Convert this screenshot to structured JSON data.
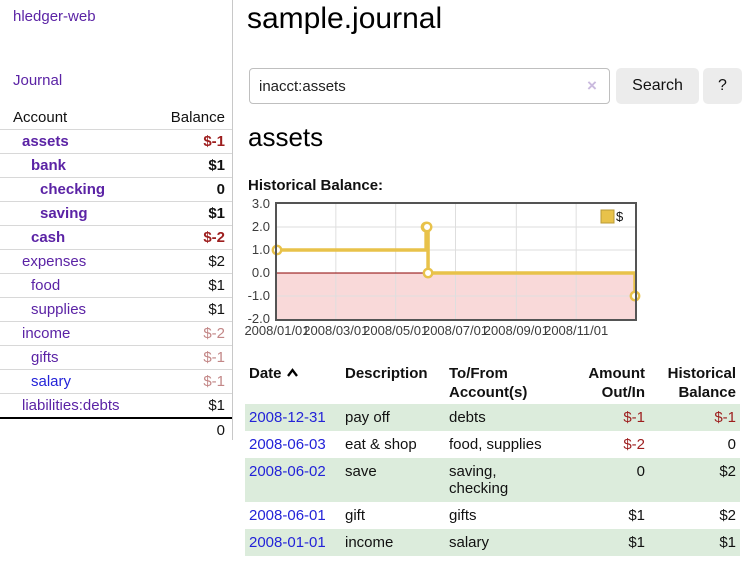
{
  "sidebar": {
    "app_title": "hledger-web",
    "nav_journal": "Journal",
    "accounts_table": {
      "header_account": "Account",
      "header_balance": "Balance",
      "rows": [
        {
          "account": "assets",
          "balance": "$-1",
          "level": 1,
          "bold": true,
          "balance_style": "neg"
        },
        {
          "account": "bank",
          "balance": "$1",
          "level": 2,
          "bold": true,
          "balance_style": ""
        },
        {
          "account": "checking",
          "balance": "0",
          "level": 3,
          "bold": true,
          "balance_style": ""
        },
        {
          "account": "saving",
          "balance": "$1",
          "level": 3,
          "bold": true,
          "balance_style": ""
        },
        {
          "account": "cash",
          "balance": "$-2",
          "level": 2,
          "bold": true,
          "balance_style": "neg"
        },
        {
          "account": "expenses",
          "balance": "$2",
          "level": 1,
          "bold": false,
          "balance_style": ""
        },
        {
          "account": "food",
          "balance": "$1",
          "level": 2,
          "bold": false,
          "balance_style": ""
        },
        {
          "account": "supplies",
          "balance": "$1",
          "level": 2,
          "bold": false,
          "balance_style": ""
        },
        {
          "account": "income",
          "balance": "$-2",
          "level": 1,
          "bold": false,
          "balance_style": "neg-faded"
        },
        {
          "account": "gifts",
          "balance": "$-1",
          "level": 2,
          "bold": false,
          "balance_style": "neg-faded"
        },
        {
          "account": "salary",
          "balance": "$-1",
          "level": 2,
          "bold": false,
          "balance_style": "neg-faded",
          "link_blue": true
        },
        {
          "account": "liabilities:debts",
          "balance": "$1",
          "level": 1,
          "bold": false,
          "balance_style": ""
        }
      ],
      "total": "0"
    }
  },
  "main": {
    "title": "sample.journal",
    "search": {
      "value": "inacct:assets",
      "clear_icon": "×",
      "search_button": "Search",
      "help_button": "?"
    },
    "account_heading": "assets",
    "chart_label": "Historical Balance:",
    "register_table": {
      "header_date": "Date",
      "header_description": "Description",
      "header_tofrom": "To/From Account(s)",
      "header_amount": "Amount Out/In",
      "header_balance": "Historical Balance",
      "rows": [
        {
          "date": "2008-12-31",
          "description": "pay off",
          "accounts": "debts",
          "amount": "$-1",
          "amount_neg": true,
          "balance": "$-1",
          "balance_neg": true,
          "shaded": true
        },
        {
          "date": "2008-06-03",
          "description": "eat & shop",
          "accounts": "food, supplies",
          "amount": "$-2",
          "amount_neg": true,
          "balance": "0",
          "balance_neg": false,
          "shaded": false
        },
        {
          "date": "2008-06-02",
          "description": "save",
          "accounts": "saving, checking",
          "amount": "0",
          "amount_neg": false,
          "balance": "$2",
          "balance_neg": false,
          "shaded": true
        },
        {
          "date": "2008-06-01",
          "description": "gift",
          "accounts": "gifts",
          "amount": "$1",
          "amount_neg": false,
          "balance": "$2",
          "balance_neg": false,
          "shaded": false
        },
        {
          "date": "2008-01-01",
          "description": "income",
          "accounts": "salary",
          "amount": "$1",
          "amount_neg": false,
          "balance": "$1",
          "balance_neg": false,
          "shaded": true
        }
      ]
    }
  },
  "chart_data": {
    "type": "line",
    "title": "Historical Balance:",
    "legend": "$",
    "legend_position": "top-right",
    "grid": true,
    "step": true,
    "xlim": [
      "2008-01-01",
      "2008-12-31"
    ],
    "ylim": [
      -2,
      3
    ],
    "series": [
      {
        "name": "$",
        "points": [
          [
            "2008-01-01",
            1
          ],
          [
            "2008-06-01",
            2
          ],
          [
            "2008-06-02",
            2
          ],
          [
            "2008-06-03",
            0
          ],
          [
            "2008-12-31",
            -1
          ]
        ]
      }
    ],
    "y_ticks": [
      {
        "v": 3,
        "label": "3.0"
      },
      {
        "v": 2,
        "label": "2.0"
      },
      {
        "v": 1,
        "label": "1.0"
      },
      {
        "v": 0,
        "label": "0.0"
      },
      {
        "v": -1,
        "label": "-1.0"
      },
      {
        "v": -2,
        "label": "-2.0"
      }
    ],
    "x_ticks": [
      {
        "date": "2008-01-01",
        "label": "2008/01/01"
      },
      {
        "date": "2008-03-01",
        "label": "2008/03/01"
      },
      {
        "date": "2008-05-01",
        "label": "2008/05/01"
      },
      {
        "date": "2008-07-01",
        "label": "2008/07/01"
      },
      {
        "date": "2008-09-01",
        "label": "2008/09/01"
      },
      {
        "date": "2008-11-01",
        "label": "2008/11/01"
      }
    ],
    "grid_y": [
      2,
      1,
      -1
    ],
    "grid_x": [
      "2008-03-01",
      "2008-05-01",
      "2008-07-01",
      "2008-09-01",
      "2008-11-01"
    ],
    "colors": {
      "line": "#e8c24a",
      "marker_fill": "#ffffff",
      "below_zero_fill": "#f9d9d9",
      "zero_line": "#8b0000",
      "border": "#545454",
      "grid": "#dedede",
      "tick_text": "#3c3c3c"
    }
  }
}
